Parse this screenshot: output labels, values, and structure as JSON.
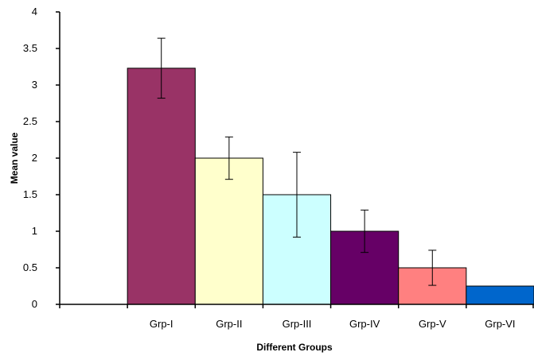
{
  "chart_data": {
    "type": "bar",
    "title": "",
    "xlabel": "Different Groups",
    "ylabel": "Mean value",
    "categories": [
      "",
      "Grp-I",
      "Grp-II",
      "Grp-III",
      "Grp-IV",
      "Grp-V",
      "Grp-VI"
    ],
    "values": [
      null,
      3.23,
      2.0,
      1.5,
      1.0,
      0.5,
      0.25
    ],
    "errors": [
      null,
      0.41,
      0.29,
      0.58,
      0.29,
      0.24,
      null
    ],
    "colors": [
      null,
      "#993366",
      "#ffffcc",
      "#ccffff",
      "#660066",
      "#ff8080",
      "#0066cc"
    ],
    "ylim": [
      0,
      4
    ],
    "yticks": [
      "0",
      "0.5",
      "1",
      "1.5",
      "2",
      "2.5",
      "3",
      "3.5",
      "4"
    ],
    "grid": false,
    "legend": "none"
  }
}
